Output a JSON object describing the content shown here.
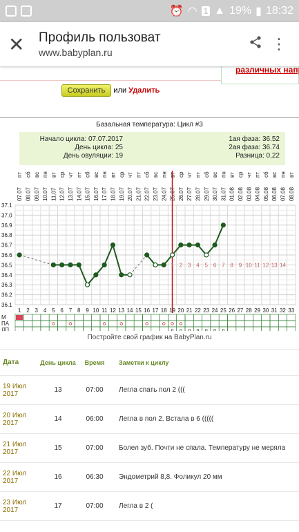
{
  "status": {
    "battery": "19%",
    "time": "18:32",
    "sim": "1"
  },
  "appbar": {
    "title": "Профиль пользоват",
    "url": "www.babyplan.ru"
  },
  "top": {
    "link": "различных напр",
    "save_label": "Сохранить",
    "or_label": "или",
    "delete_label": "Удалить"
  },
  "chart_header": {
    "title": "Базальная температура: Цикл #3",
    "cycle_start": "Начало цикла: 07.07.2017",
    "cycle_day": "День цикла: 25",
    "ovulation_day": "День овуляции: 19",
    "phase1": "1ая фаза: 36.52",
    "phase2": "2ая фаза: 36.74",
    "diff": "Разница: 0,22"
  },
  "chart_data": {
    "type": "line",
    "title": "Базальная температура: Цикл #3",
    "dates": [
      "07.07",
      "08.07",
      "09.07",
      "10.07",
      "11.07",
      "12.07",
      "13.07",
      "14.07",
      "15.07",
      "16.07",
      "17.07",
      "18.07",
      "19.07",
      "20.07",
      "21.07",
      "22.07",
      "23.07",
      "24.07",
      "25.07",
      "26.07",
      "27.07",
      "28.07",
      "29.07",
      "30.07",
      "31.07",
      "01.08",
      "02.08",
      "03.08",
      "04.08",
      "05.08",
      "06.08",
      "07.08",
      "08.08"
    ],
    "weekdays": [
      "пт",
      "сб",
      "вс",
      "пн",
      "вт",
      "ср",
      "чт",
      "пт",
      "сб",
      "вс",
      "пн",
      "вт",
      "ср",
      "чт",
      "пт",
      "сб",
      "вс",
      "пн",
      "вт",
      "ср",
      "чт",
      "пт",
      "сб",
      "вс",
      "пн",
      "вт",
      "ср",
      "чт",
      "пт",
      "сб",
      "вс",
      "пн",
      "вт"
    ],
    "days": [
      1,
      2,
      3,
      4,
      5,
      6,
      7,
      8,
      9,
      10,
      11,
      12,
      13,
      14,
      15,
      16,
      17,
      18,
      19,
      20,
      21,
      22,
      23,
      24,
      25,
      26,
      27,
      28,
      29,
      30,
      31,
      32,
      33
    ],
    "temps": [
      36.6,
      null,
      null,
      null,
      36.5,
      36.5,
      36.5,
      36.5,
      36.3,
      36.4,
      36.5,
      36.7,
      36.4,
      36.4,
      null,
      36.6,
      36.5,
      36.5,
      36.6,
      36.7,
      36.7,
      36.7,
      36.6,
      36.7,
      36.9
    ],
    "hollow_days": [
      9,
      14,
      17,
      19,
      23
    ],
    "ylim": [
      36.1,
      37.1
    ],
    "ovulation_day": 19,
    "post_ovulation_counter": [
      1,
      2,
      3,
      4,
      5,
      6,
      7,
      8,
      9,
      10,
      11,
      12,
      13,
      14
    ],
    "row_labels": [
      "М",
      "ПА",
      "ЛП"
    ],
    "m_days": [
      1
    ],
    "pa_days": [
      5,
      7,
      11,
      13,
      16,
      18,
      19,
      20
    ],
    "lp_days": [
      19,
      20,
      21,
      22,
      23,
      24,
      25
    ]
  },
  "chart_footer": "Постройте свой график на BabyPlan.ru",
  "notes": {
    "headers": {
      "date": "Дата",
      "day": "День цикла",
      "time": "Время",
      "note": "Заметки к циклу"
    },
    "rows": [
      {
        "date": "19 Июл 2017",
        "day": "13",
        "time": "07:00",
        "note": "Легла спать пол 2 ((("
      },
      {
        "date": "20 Июл 2017",
        "day": "14",
        "time": "06:00",
        "note": "Легла в пол 2. Встала в 6 ((((("
      },
      {
        "date": "21 Июл 2017",
        "day": "15",
        "time": "07:00",
        "note": "Болел зуб. Почти не спала. Температуру не меряла"
      },
      {
        "date": "22 Июл 2017",
        "day": "16",
        "time": "06:30",
        "note": "Эндометрий 8,8. Фоликул 20 мм"
      },
      {
        "date": "23 Июл 2017",
        "day": "17",
        "time": "07:00",
        "note": "Легла в 2 ("
      }
    ]
  }
}
